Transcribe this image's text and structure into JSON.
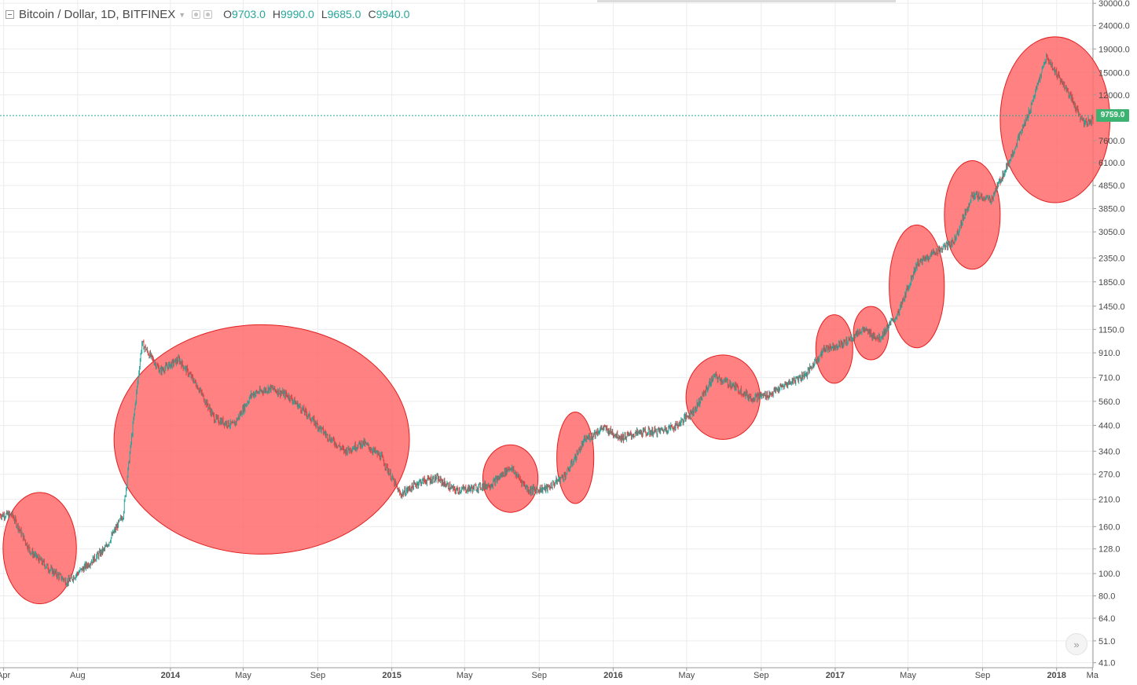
{
  "header": {
    "title": "Bitcoin / Dollar, 1D, BITFINEX",
    "ohlc": [
      {
        "key": "O",
        "value": "9703.0"
      },
      {
        "key": "H",
        "value": "9990.0"
      },
      {
        "key": "L",
        "value": "9685.0"
      },
      {
        "key": "C",
        "value": "9940.0"
      }
    ]
  },
  "current_price_label": "9759.0",
  "scroll_label": "»",
  "colors": {
    "up": "#26a69a",
    "down": "#d84343",
    "highlight_fill": "#ff6b6b",
    "highlight_stroke": "#e21e1e",
    "price_line": "#26a69a",
    "price_tag": "#3cb371",
    "grid": "#ececec",
    "axis_text": "#4a4a4a"
  },
  "chart_data": {
    "type": "line",
    "title": "Bitcoin / Dollar, 1D, BITFINEX",
    "scale": "log",
    "grid": true,
    "legend": "none",
    "ylim": [
      39,
      31000
    ],
    "x_tick_labels": [
      "Apr",
      "Aug",
      "2014",
      "May",
      "Sep",
      "2015",
      "May",
      "Sep",
      "2016",
      "May",
      "Sep",
      "2017",
      "May",
      "Sep",
      "2018",
      "Ma"
    ],
    "y_ticks": [
      30000,
      24000,
      19000,
      15000,
      12000,
      7600,
      6100,
      4850,
      3850,
      3050,
      2350,
      1850,
      1450,
      1150,
      910,
      710,
      560,
      440,
      340,
      270,
      210,
      160,
      128,
      100,
      80,
      64,
      51,
      41
    ],
    "y_tick_labels": [
      "30000.0",
      "24000.0",
      "19000.0",
      "15000.0",
      "12000.0",
      "7600.0",
      "6100.0",
      "4850.0",
      "3850.0",
      "3050.0",
      "2350.0",
      "1850.0",
      "1450.0",
      "1150.0",
      "910.0",
      "710.0",
      "560.0",
      "440.0",
      "340.0",
      "270.0",
      "210.0",
      "160.0",
      "128.0",
      "100.0",
      "80.0",
      "64.0",
      "51.0",
      "41.0"
    ],
    "current_price": 9759,
    "series": [
      {
        "values_are": "approximate daily close (USD) at month resolution",
        "x": [
          "2013-04",
          "2013-05",
          "2013-06",
          "2013-07",
          "2013-08",
          "2013-09",
          "2013-10",
          "2013-11",
          "2013-12",
          "2014-01",
          "2014-02",
          "2014-03",
          "2014-04",
          "2014-05",
          "2014-06",
          "2014-07",
          "2014-08",
          "2014-09",
          "2014-10",
          "2014-11",
          "2014-12",
          "2015-01",
          "2015-02",
          "2015-03",
          "2015-04",
          "2015-05",
          "2015-06",
          "2015-07",
          "2015-08",
          "2015-09",
          "2015-10",
          "2015-11",
          "2015-12",
          "2016-01",
          "2016-02",
          "2016-03",
          "2016-04",
          "2016-05",
          "2016-06",
          "2016-07",
          "2016-08",
          "2016-09",
          "2016-10",
          "2016-11",
          "2016-12",
          "2017-01",
          "2017-02",
          "2017-03",
          "2017-04",
          "2017-05",
          "2017-06",
          "2017-07",
          "2017-08",
          "2017-09",
          "2017-10",
          "2017-11",
          "2017-12",
          "2018-01",
          "2018-02",
          "2018-03"
        ],
        "y": [
          180,
          125,
          105,
          92,
          108,
          128,
          180,
          1000,
          760,
          850,
          650,
          470,
          440,
          600,
          640,
          590,
          490,
          400,
          340,
          370,
          320,
          220,
          250,
          260,
          230,
          235,
          245,
          290,
          230,
          235,
          270,
          380,
          430,
          390,
          410,
          415,
          440,
          520,
          720,
          660,
          580,
          600,
          670,
          740,
          950,
          1000,
          1150,
          1050,
          1350,
          2200,
          2500,
          2750,
          4400,
          4200,
          6200,
          9800,
          17500,
          13000,
          9000,
          9759
        ]
      }
    ],
    "highlights": [
      {
        "from": "2013-04",
        "to": "2013-07"
      },
      {
        "from": "2013-10",
        "to": "2015-01"
      },
      {
        "from": "2015-06",
        "to": "2015-08"
      },
      {
        "from": "2015-10",
        "to": "2015-11"
      },
      {
        "from": "2016-05",
        "to": "2016-08"
      },
      {
        "from": "2016-12",
        "to": "2017-01"
      },
      {
        "from": "2017-02",
        "to": "2017-03"
      },
      {
        "from": "2017-04",
        "to": "2017-06"
      },
      {
        "from": "2017-07",
        "to": "2017-09"
      },
      {
        "from": "2017-10",
        "to": "2018-03"
      }
    ]
  }
}
